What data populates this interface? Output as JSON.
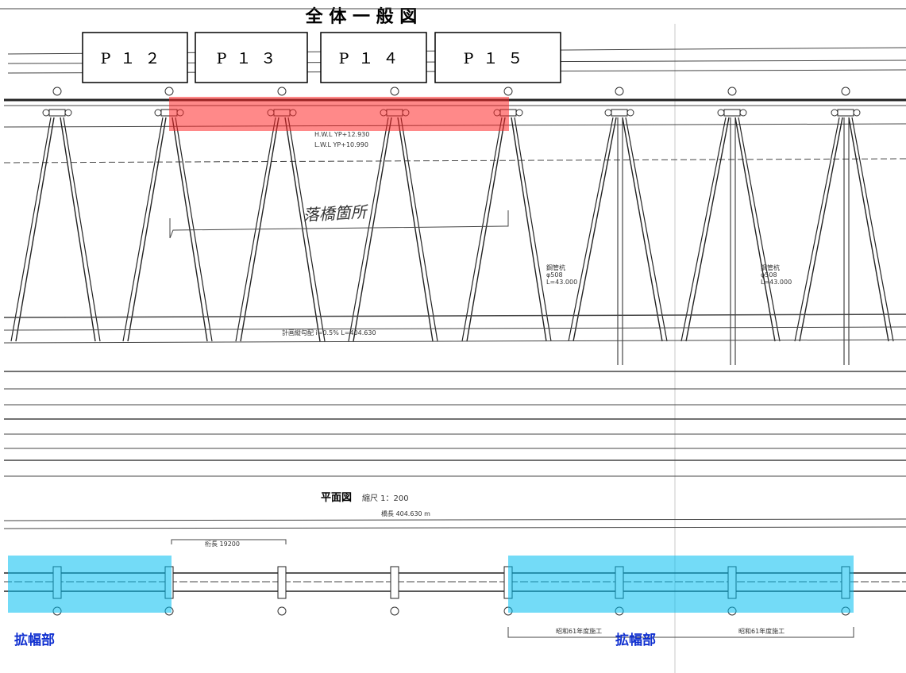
{
  "header": {
    "title": "全 体 一 般 図"
  },
  "pier_labels": [
    "P１２",
    "P１３",
    "P１４",
    "P１５"
  ],
  "elevation": {
    "hwl": "H.W.L  YP+12.930",
    "lwl": "L.W.L  YP+10.990",
    "handwritten": "落橋箇所",
    "pile_note": [
      "鋼管杭",
      "φ508",
      "L=43.000"
    ],
    "gradient": "計画縦勾配  i=0.5%  L=404.630"
  },
  "plan": {
    "title": "平面図",
    "scale": "縮尺 1：200",
    "length": "橋長 404.630 m",
    "span": "桁長 19200",
    "work_left": "昭和61年度施工",
    "work_right": "昭和61年度施工"
  },
  "widening_labels": [
    "拡幅部",
    "拡幅部"
  ]
}
